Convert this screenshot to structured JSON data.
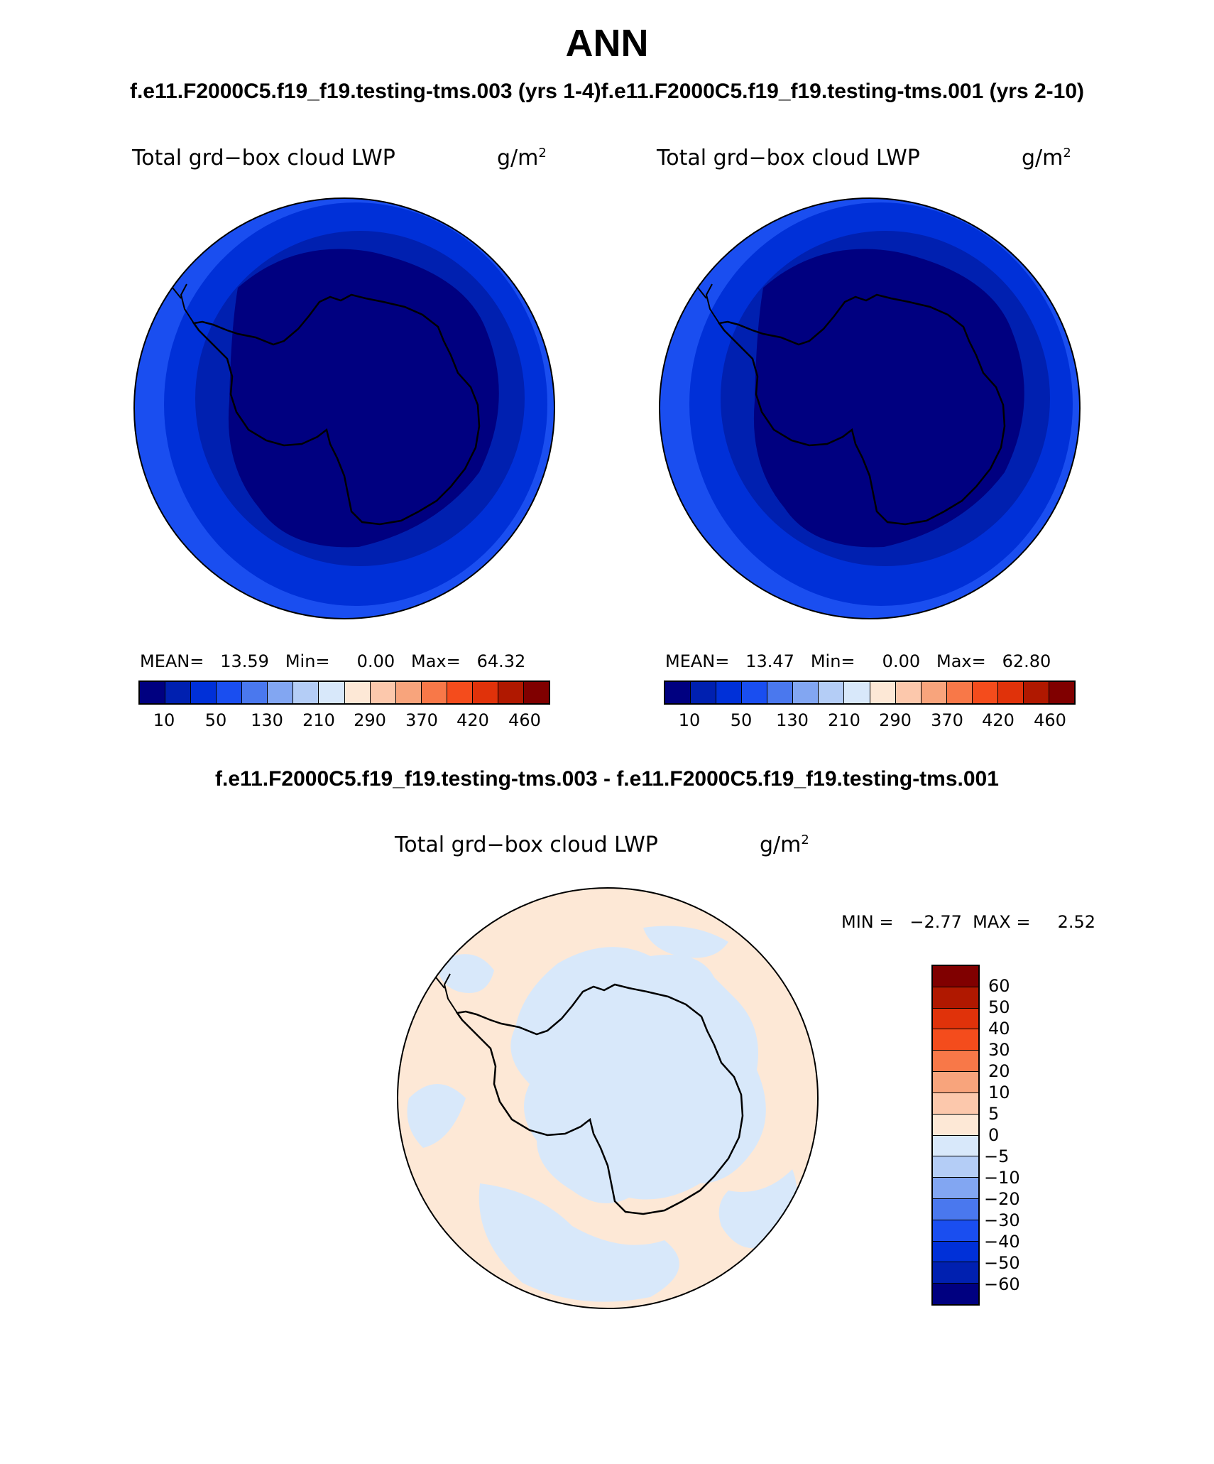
{
  "title": "ANN",
  "header": {
    "case1": "f.e11.F2000C5.f19_f19.testing-tms.003 (yrs 1-4)",
    "case2": "f.e11.F2000C5.f19_f19.testing-tms.001 (yrs 2-10)",
    "difference": "f.e11.F2000C5.f19_f19.testing-tms.003 - f.e11.F2000C5.f19_f19.testing-tms.001"
  },
  "panels": [
    {
      "variable": "Total grd−box cloud LWP",
      "units": "g/m",
      "units_sup": "2",
      "stats_text": "MEAN=   13.59   Min=     0.00   Max=   64.32"
    },
    {
      "variable": "Total grd−box cloud LWP",
      "units": "g/m",
      "units_sup": "2",
      "stats_text": "MEAN=   13.47   Min=     0.00   Max=   62.80"
    }
  ],
  "diff_panel": {
    "variable": "Total grd−box cloud LWP",
    "units": "g/m",
    "units_sup": "2",
    "minmax_text": "MIN =   −2.77  MAX =     2.52"
  },
  "colorbar": {
    "colors": [
      "#000080",
      "#0020b0",
      "#0030d8",
      "#1a4ef0",
      "#4a78ee",
      "#82a6f2",
      "#b4cdf6",
      "#d8e8fa",
      "#fde8d6",
      "#fcc8ac",
      "#f8a47c",
      "#f87848",
      "#f44c1c",
      "#e0320a",
      "#b01800",
      "#800000"
    ],
    "ticks": [
      "10",
      "50",
      "130",
      "210",
      "290",
      "370",
      "420",
      "460"
    ]
  },
  "diff_colorbar": {
    "colors": [
      "#800000",
      "#b01800",
      "#e0320a",
      "#f44c1c",
      "#f87848",
      "#f8a47c",
      "#fcc8ac",
      "#fde8d6",
      "#d8e8fa",
      "#b4cdf6",
      "#82a6f2",
      "#4a78ee",
      "#1a4ef0",
      "#0030d8",
      "#0020b0",
      "#000080"
    ],
    "ticks": [
      "60",
      "50",
      "40",
      "30",
      "20",
      "10",
      "5",
      "0",
      "−5",
      "−10",
      "−20",
      "−30",
      "−40",
      "−50",
      "−60"
    ]
  },
  "map_colors": {
    "outer": "#1a4ef0",
    "mid": "#0030d8",
    "inner": "#0020b0",
    "core": "#000080",
    "diff_pos": "#fde8d6",
    "diff_neg": "#d8e8fa"
  }
}
